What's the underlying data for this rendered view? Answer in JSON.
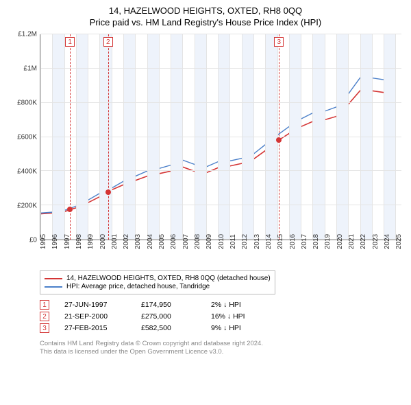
{
  "title": "14, HAZELWOOD HEIGHTS, OXTED, RH8 0QQ",
  "subtitle": "Price paid vs. HM Land Registry's House Price Index (HPI)",
  "chart": {
    "type": "line",
    "background_color": "#ffffff",
    "grid_color": "#e4e4e4",
    "band_color": "#eef3fb",
    "axis_color": "#888888",
    "x_range": [
      1995,
      2025.5
    ],
    "y_range": [
      0,
      1200000
    ],
    "y_ticks": [
      {
        "v": 0,
        "label": "£0"
      },
      {
        "v": 200000,
        "label": "£200K"
      },
      {
        "v": 400000,
        "label": "£400K"
      },
      {
        "v": 600000,
        "label": "£600K"
      },
      {
        "v": 800000,
        "label": "£800K"
      },
      {
        "v": 1000000,
        "label": "£1M"
      },
      {
        "v": 1200000,
        "label": "£1.2M"
      }
    ],
    "x_ticks": [
      1995,
      1996,
      1997,
      1998,
      1999,
      2000,
      2001,
      2002,
      2003,
      2004,
      2005,
      2006,
      2007,
      2008,
      2009,
      2010,
      2011,
      2012,
      2013,
      2014,
      2015,
      2016,
      2017,
      2018,
      2019,
      2020,
      2021,
      2022,
      2023,
      2024,
      2025
    ],
    "marker_line_color": "#d43535",
    "markers": [
      {
        "id": "1",
        "x": 1997.5,
        "y": 174950
      },
      {
        "id": "2",
        "x": 2000.72,
        "y": 275000
      },
      {
        "id": "3",
        "x": 2015.16,
        "y": 582500
      }
    ],
    "series": [
      {
        "name": "property",
        "label": "14, HAZELWOOD HEIGHTS, OXTED, RH8 0QQ (detached house)",
        "color": "#d43535",
        "line_width": 1.6,
        "points": [
          [
            1995,
            150000
          ],
          [
            1996,
            155000
          ],
          [
            1997,
            162000
          ],
          [
            1997.5,
            174950
          ],
          [
            1998,
            185000
          ],
          [
            1999,
            215000
          ],
          [
            2000,
            250000
          ],
          [
            2000.72,
            275000
          ],
          [
            2001,
            290000
          ],
          [
            2002,
            320000
          ],
          [
            2003,
            345000
          ],
          [
            2004,
            370000
          ],
          [
            2005,
            385000
          ],
          [
            2006,
            400000
          ],
          [
            2007,
            425000
          ],
          [
            2008,
            400000
          ],
          [
            2008.5,
            375000
          ],
          [
            2009,
            390000
          ],
          [
            2010,
            420000
          ],
          [
            2011,
            430000
          ],
          [
            2012,
            445000
          ],
          [
            2013,
            470000
          ],
          [
            2014,
            520000
          ],
          [
            2015,
            575000
          ],
          [
            2015.16,
            582500
          ],
          [
            2016,
            620000
          ],
          [
            2017,
            660000
          ],
          [
            2018,
            690000
          ],
          [
            2019,
            700000
          ],
          [
            2020,
            720000
          ],
          [
            2021,
            790000
          ],
          [
            2022,
            870000
          ],
          [
            2022.8,
            900000
          ],
          [
            2023,
            870000
          ],
          [
            2024,
            860000
          ],
          [
            2025,
            870000
          ]
        ]
      },
      {
        "name": "hpi",
        "label": "HPI: Average price, detached house, Tandridge",
        "color": "#4a7fc9",
        "line_width": 1.4,
        "points": [
          [
            1995,
            155000
          ],
          [
            1996,
            160000
          ],
          [
            1997,
            170000
          ],
          [
            1998,
            195000
          ],
          [
            1999,
            230000
          ],
          [
            2000,
            270000
          ],
          [
            2001,
            300000
          ],
          [
            2002,
            340000
          ],
          [
            2003,
            370000
          ],
          [
            2004,
            400000
          ],
          [
            2005,
            415000
          ],
          [
            2006,
            435000
          ],
          [
            2007,
            465000
          ],
          [
            2008,
            440000
          ],
          [
            2008.5,
            410000
          ],
          [
            2009,
            425000
          ],
          [
            2010,
            455000
          ],
          [
            2011,
            460000
          ],
          [
            2012,
            475000
          ],
          [
            2013,
            500000
          ],
          [
            2014,
            555000
          ],
          [
            2015,
            610000
          ],
          [
            2016,
            660000
          ],
          [
            2017,
            705000
          ],
          [
            2018,
            740000
          ],
          [
            2019,
            750000
          ],
          [
            2020,
            775000
          ],
          [
            2021,
            850000
          ],
          [
            2022,
            945000
          ],
          [
            2022.8,
            980000
          ],
          [
            2023,
            945000
          ],
          [
            2024,
            935000
          ],
          [
            2025,
            945000
          ]
        ]
      }
    ]
  },
  "sales": [
    {
      "id": "1",
      "date": "27-JUN-1997",
      "price": "£174,950",
      "diff": "2% ↓ HPI"
    },
    {
      "id": "2",
      "date": "21-SEP-2000",
      "price": "£275,000",
      "diff": "16% ↓ HPI"
    },
    {
      "id": "3",
      "date": "27-FEB-2015",
      "price": "£582,500",
      "diff": "9% ↓ HPI"
    }
  ],
  "attribution": {
    "line1": "Contains HM Land Registry data © Crown copyright and database right 2024.",
    "line2": "This data is licensed under the Open Government Licence v3.0."
  }
}
